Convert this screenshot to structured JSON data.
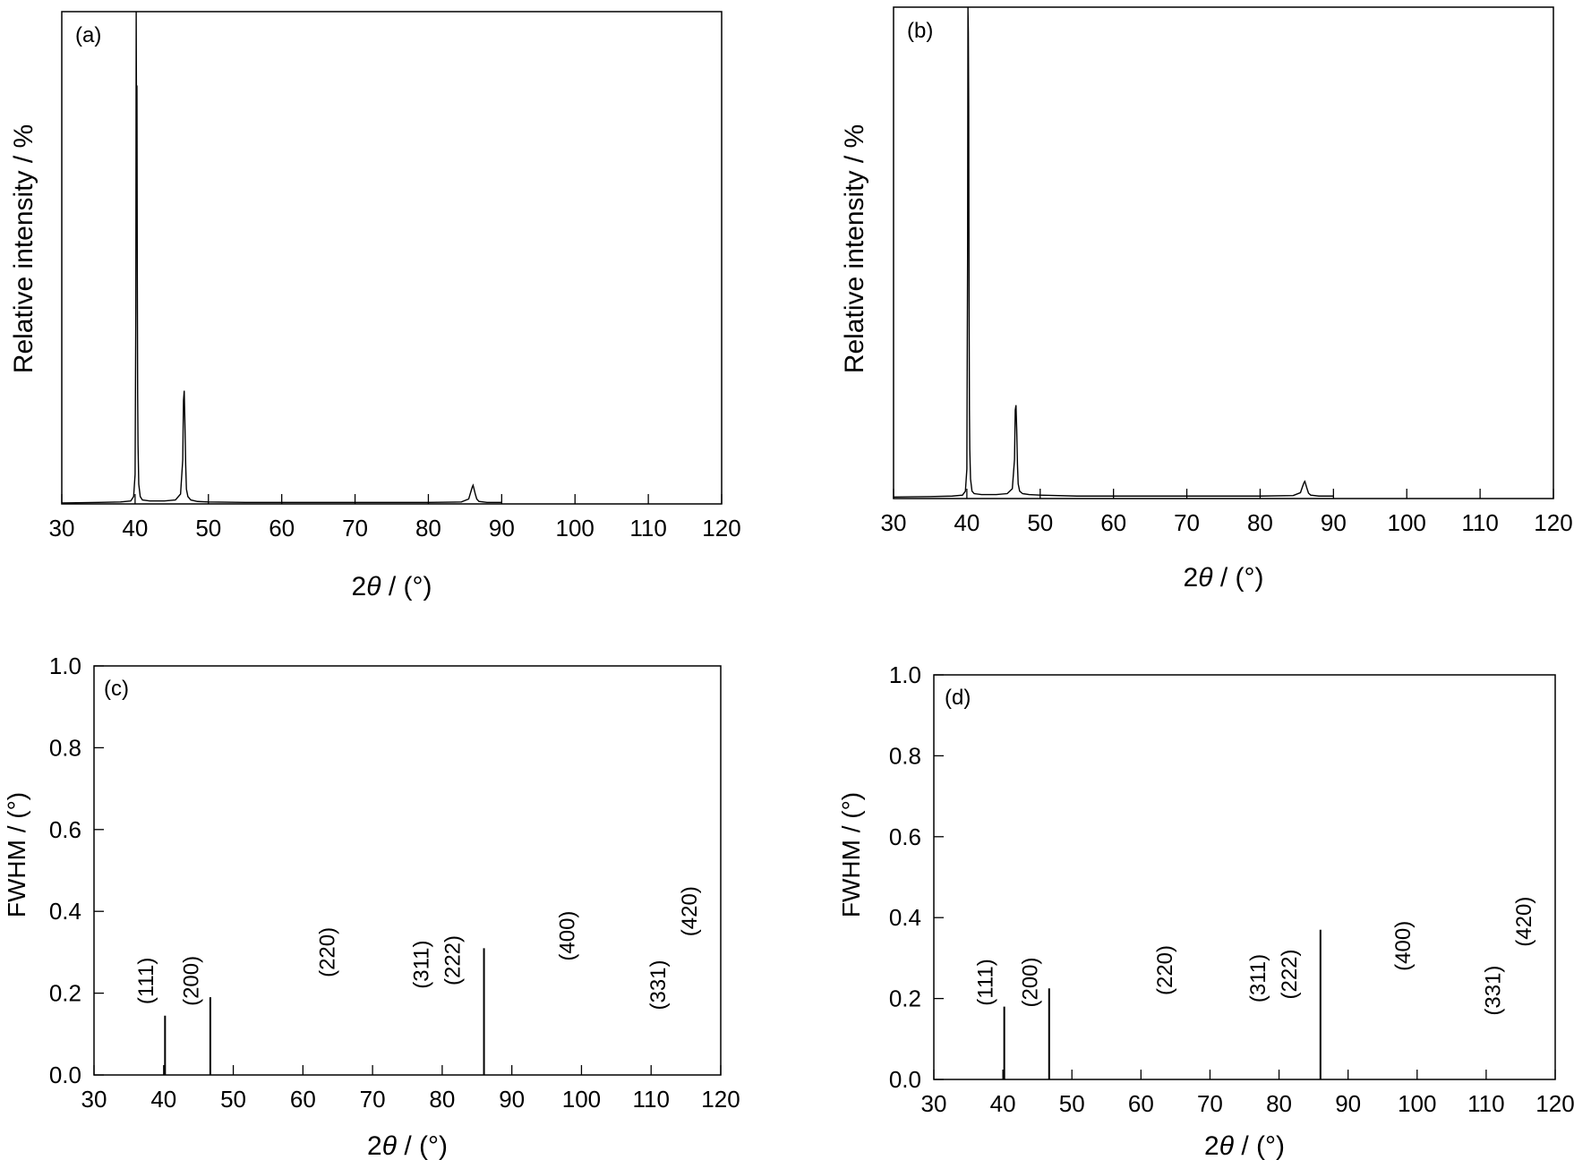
{
  "chart_data": [
    {
      "panel": "(a)",
      "type": "line",
      "xlabel_prefix": "2",
      "xlabel_symbol": "θ",
      "xlabel_suffix": " / (°)",
      "ylabel": "Relative intensity / %",
      "xlim": [
        30,
        120
      ],
      "ylim": [
        0,
        100
      ],
      "xticks": [
        30,
        40,
        50,
        60,
        70,
        80,
        90,
        100,
        110,
        120
      ],
      "yticks": [],
      "grid": false,
      "series": [
        {
          "x": [
            30,
            35,
            38,
            39.4,
            39.8,
            40.0,
            40.1,
            40.15,
            40.2,
            40.25,
            40.3,
            40.35,
            40.4,
            40.5,
            40.7,
            41.0,
            42,
            44,
            45.5,
            46.2,
            46.5,
            46.6,
            46.7,
            46.8,
            46.9,
            47.0,
            47.2,
            47.6,
            48.5,
            50,
            55,
            60,
            70,
            80,
            84.5,
            85.5,
            85.8,
            86.0,
            86.1,
            86.2,
            86.4,
            86.6,
            86.9,
            88,
            90
          ],
          "y": [
            0.2,
            0.3,
            0.4,
            0.6,
            1.5,
            6,
            40,
            100,
            74,
            85,
            47,
            22,
            12,
            4,
            1.5,
            0.8,
            0.6,
            0.6,
            0.8,
            2,
            9,
            21,
            23,
            16,
            8,
            3,
            1.5,
            0.8,
            0.5,
            0.4,
            0.3,
            0.3,
            0.3,
            0.3,
            0.4,
            1,
            2.5,
            3.5,
            3.8,
            3.2,
            2,
            1,
            0.5,
            0.3,
            0.3
          ]
        }
      ]
    },
    {
      "panel": "(b)",
      "type": "line",
      "xlabel_prefix": "2",
      "xlabel_symbol": "θ",
      "xlabel_suffix": " / (°)",
      "ylabel": "Relative intensity / %",
      "xlim": [
        30,
        120
      ],
      "ylim": [
        0,
        100
      ],
      "xticks": [
        30,
        40,
        50,
        60,
        70,
        80,
        90,
        100,
        110,
        120
      ],
      "yticks": [],
      "grid": false,
      "series": [
        {
          "x": [
            30,
            35,
            38,
            39.4,
            39.8,
            40.0,
            40.1,
            40.15,
            40.2,
            40.25,
            40.3,
            40.35,
            40.4,
            40.5,
            40.7,
            41.0,
            42,
            44,
            45.5,
            46.2,
            46.5,
            46.6,
            46.7,
            46.8,
            46.9,
            47.0,
            47.2,
            47.6,
            48.5,
            50,
            55,
            60,
            70,
            80,
            84.5,
            85.5,
            85.8,
            86.0,
            86.1,
            86.2,
            86.4,
            86.6,
            86.9,
            88,
            90
          ],
          "y": [
            0.3,
            0.4,
            0.5,
            0.7,
            1.5,
            6,
            50,
            100,
            95,
            80,
            40,
            18,
            10,
            4,
            1.5,
            1,
            0.8,
            0.8,
            1,
            2,
            8,
            18,
            19,
            14,
            7,
            3,
            1.5,
            1,
            0.8,
            0.7,
            0.5,
            0.5,
            0.5,
            0.5,
            0.6,
            1.2,
            2.5,
            3.3,
            3.5,
            3,
            2,
            1.1,
            0.7,
            0.5,
            0.5
          ]
        }
      ]
    },
    {
      "panel": "(c)",
      "type": "bar",
      "xlabel_prefix": "2",
      "xlabel_symbol": "θ",
      "xlabel_suffix": " / (°)",
      "ylabel": "FWHM / (°)",
      "xlim": [
        30,
        120
      ],
      "ylim": [
        0,
        1.0
      ],
      "xticks": [
        30,
        40,
        50,
        60,
        70,
        80,
        90,
        100,
        110,
        120
      ],
      "yticks": [
        "0.0",
        "0.2",
        "0.4",
        "0.6",
        "0.8",
        "1.0"
      ],
      "grid": false,
      "x": [
        40.2,
        46.7,
        86.0
      ],
      "values": [
        0.145,
        0.19,
        0.31
      ],
      "annotations": [
        {
          "text": "(111)",
          "x": 38.5,
          "y": 0.23
        },
        {
          "text": "(200)",
          "x": 45.0,
          "y": 0.23
        },
        {
          "text": "(220)",
          "x": 64.5,
          "y": 0.3
        },
        {
          "text": "(311)",
          "x": 78.0,
          "y": 0.27
        },
        {
          "text": "(222)",
          "x": 82.5,
          "y": 0.28
        },
        {
          "text": "(400)",
          "x": 99.0,
          "y": 0.34
        },
        {
          "text": "(331)",
          "x": 112.0,
          "y": 0.22
        },
        {
          "text": "(420)",
          "x": 116.5,
          "y": 0.4
        }
      ]
    },
    {
      "panel": "(d)",
      "type": "bar",
      "xlabel_prefix": "2",
      "xlabel_symbol": "θ",
      "xlabel_suffix": " / (°)",
      "ylabel": "FWHM / (°)",
      "xlim": [
        30,
        120
      ],
      "ylim": [
        0,
        1.0
      ],
      "xticks": [
        30,
        40,
        50,
        60,
        70,
        80,
        90,
        100,
        110,
        120
      ],
      "yticks": [
        "0.0",
        "0.2",
        "0.4",
        "0.6",
        "0.8",
        "1.0"
      ],
      "grid": false,
      "x": [
        40.2,
        46.7,
        86.0
      ],
      "values": [
        0.18,
        0.225,
        0.37
      ],
      "annotations": [
        {
          "text": "(111)",
          "x": 38.5,
          "y": 0.24
        },
        {
          "text": "(200)",
          "x": 45.0,
          "y": 0.24
        },
        {
          "text": "(220)",
          "x": 64.5,
          "y": 0.27
        },
        {
          "text": "(311)",
          "x": 78.0,
          "y": 0.25
        },
        {
          "text": "(222)",
          "x": 82.5,
          "y": 0.26
        },
        {
          "text": "(400)",
          "x": 99.0,
          "y": 0.33
        },
        {
          "text": "(331)",
          "x": 112.0,
          "y": 0.22
        },
        {
          "text": "(420)",
          "x": 116.5,
          "y": 0.39
        }
      ]
    }
  ]
}
